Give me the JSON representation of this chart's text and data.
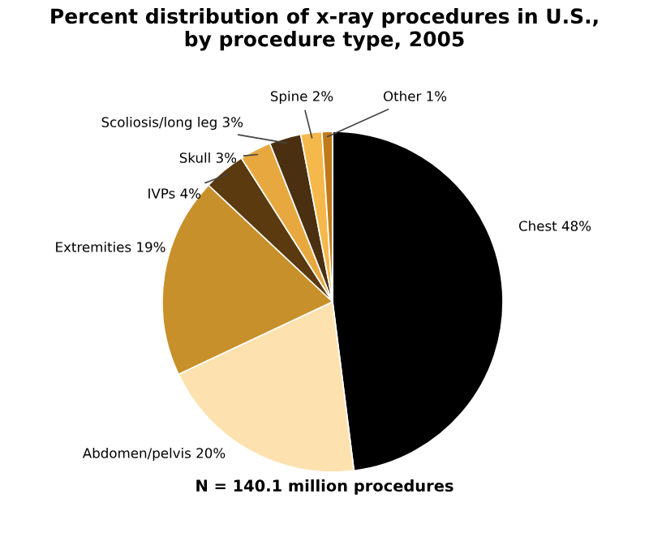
{
  "chart_data": {
    "type": "pie",
    "title": "Percent distribution of x-ray procedures in U.S.,\nby procedure type, 2005",
    "categories": [
      "Chest",
      "Abdomen/pelvis",
      "Extremities",
      "IVPs",
      "Skull",
      "Scoliosis/long leg",
      "Spine",
      "Other"
    ],
    "values": [
      48,
      20,
      19,
      4,
      3,
      3,
      2,
      1
    ],
    "colors": [
      "#000000",
      "#fde2b0",
      "#c8902a",
      "#5a3a0e",
      "#e8a840",
      "#4a3010",
      "#f5b84a",
      "#c07a1a"
    ],
    "value_labels": [
      "48%",
      "20%",
      "19%",
      "4%",
      "3%",
      "3%",
      "2%",
      "1%"
    ],
    "annotations": [
      "N = 140.1 million procedures"
    ]
  }
}
